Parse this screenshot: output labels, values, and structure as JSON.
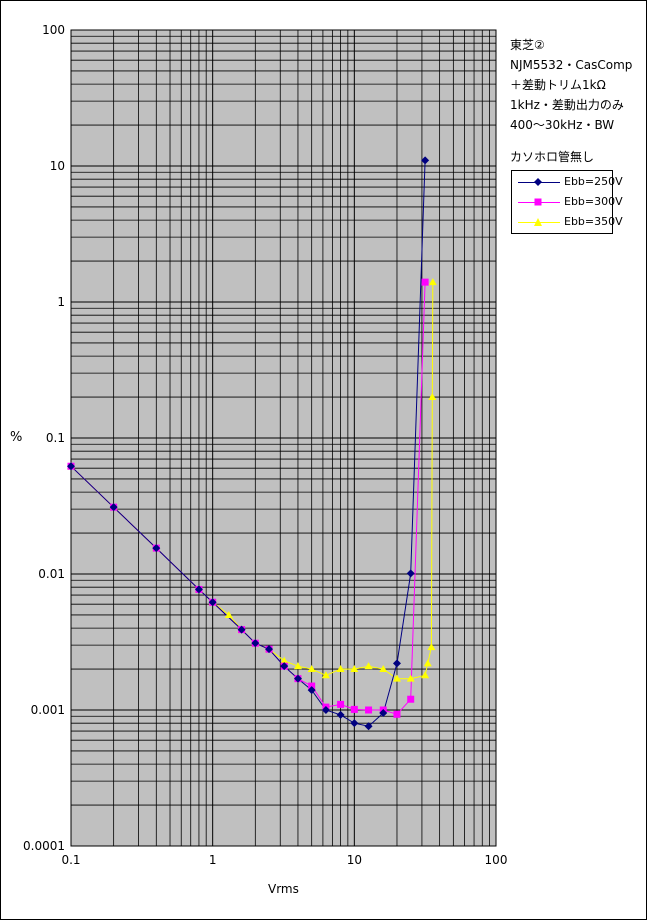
{
  "chart_data": {
    "type": "line",
    "x_scale": "log",
    "y_scale": "log",
    "xlim": [
      0.1,
      100
    ],
    "ylim": [
      0.0001,
      100
    ],
    "xlabel": "Vrms",
    "ylabel": "%",
    "x_ticks": [
      "0.1",
      "1",
      "10",
      "100"
    ],
    "y_ticks": [
      "0.0001",
      "0.001",
      "0.01",
      "0.1",
      "1",
      "10",
      "100"
    ],
    "grid": true,
    "plot_background": "#c0c0c0",
    "annotations": [
      "東芝②",
      "NJM5532・CasComp",
      "＋差動トリム1kΩ",
      "1kHz・差動出力のみ",
      "400～30kHz・BW",
      "カソホロ管無し"
    ],
    "legend_position": "right",
    "series": [
      {
        "name": "Ebb=250V",
        "color": "#000080",
        "marker": "diamond",
        "points": [
          [
            0.1,
            0.062
          ],
          [
            0.2,
            0.031
          ],
          [
            0.4,
            0.0155
          ],
          [
            0.8,
            0.0077
          ],
          [
            1.0,
            0.0062
          ],
          [
            1.6,
            0.0039
          ],
          [
            2.0,
            0.0031
          ],
          [
            2.5,
            0.0028
          ],
          [
            3.2,
            0.0021
          ],
          [
            4.0,
            0.0017
          ],
          [
            5.0,
            0.0014
          ],
          [
            6.3,
            0.001
          ],
          [
            8.0,
            0.00092
          ],
          [
            10.0,
            0.0008
          ],
          [
            12.6,
            0.00076
          ],
          [
            16.0,
            0.00095
          ],
          [
            20.0,
            0.0022
          ],
          [
            25.0,
            0.0101
          ],
          [
            31.6,
            11.0
          ]
        ]
      },
      {
        "name": "Ebb=300V",
        "color": "#ff00ff",
        "marker": "square",
        "points": [
          [
            0.1,
            0.062
          ],
          [
            0.2,
            0.031
          ],
          [
            0.4,
            0.0155
          ],
          [
            0.8,
            0.0077
          ],
          [
            1.0,
            0.0062
          ],
          [
            1.6,
            0.0039
          ],
          [
            2.0,
            0.0031
          ],
          [
            2.5,
            0.0028
          ],
          [
            3.2,
            0.0021
          ],
          [
            4.0,
            0.0017
          ],
          [
            5.0,
            0.0015
          ],
          [
            6.3,
            0.00105
          ],
          [
            8.0,
            0.0011
          ],
          [
            10.0,
            0.00101
          ],
          [
            12.6,
            0.001
          ],
          [
            16.0,
            0.001
          ],
          [
            20.0,
            0.00093
          ],
          [
            25.0,
            0.0012
          ],
          [
            31.6,
            1.4
          ]
        ]
      },
      {
        "name": "Ebb=350V",
        "color": "#ffff00",
        "marker": "triangle",
        "points": [
          [
            0.1,
            0.062
          ],
          [
            0.2,
            0.031
          ],
          [
            0.4,
            0.0155
          ],
          [
            0.8,
            0.0077
          ],
          [
            1.0,
            0.0062
          ],
          [
            1.3,
            0.005
          ],
          [
            1.6,
            0.0039
          ],
          [
            2.0,
            0.0031
          ],
          [
            2.5,
            0.0028
          ],
          [
            3.2,
            0.0023
          ],
          [
            4.0,
            0.0021
          ],
          [
            5.0,
            0.002
          ],
          [
            6.3,
            0.0018
          ],
          [
            8.0,
            0.002
          ],
          [
            10.0,
            0.002
          ],
          [
            12.6,
            0.0021
          ],
          [
            16.0,
            0.002
          ],
          [
            20.0,
            0.0017
          ],
          [
            25.0,
            0.0017
          ],
          [
            31.6,
            0.0018
          ],
          [
            33.0,
            0.0022
          ],
          [
            35.0,
            0.0029
          ],
          [
            35.5,
            0.2
          ],
          [
            35.8,
            1.4
          ]
        ]
      }
    ]
  }
}
